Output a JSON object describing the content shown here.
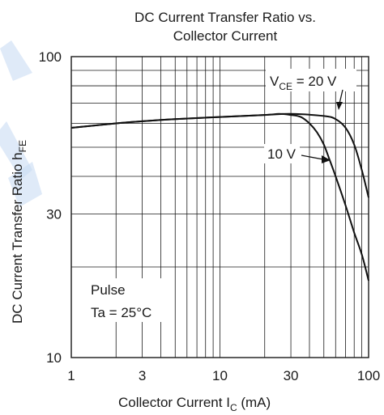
{
  "chart_data": {
    "type": "line",
    "title": [
      "DC Current Transfer Ratio vs.",
      "Collector Current"
    ],
    "xlabel": {
      "main": "Collector Current  I",
      "sub": "C",
      "unit": "  (mA)"
    },
    "ylabel": {
      "main": "DC Current Transfer Ratio  h",
      "sub": "FE"
    },
    "xscale": "log",
    "yscale": "log",
    "xlim": [
      1,
      100
    ],
    "ylim": [
      10,
      100
    ],
    "grid": true,
    "xticks": [
      {
        "value": 1,
        "label": "1"
      },
      {
        "value": 3,
        "label": "3"
      },
      {
        "value": 10,
        "label": "10"
      },
      {
        "value": 30,
        "label": "30"
      },
      {
        "value": 100,
        "label": "100"
      }
    ],
    "yticks": [
      {
        "value": 10,
        "label": "10"
      },
      {
        "value": 30,
        "label": "30"
      },
      {
        "value": 100,
        "label": "100"
      }
    ],
    "series": [
      {
        "label_main": "V",
        "label_sub": "CE",
        "label_rest": " = 20 V",
        "x": [
          1,
          2,
          3,
          5,
          10,
          20,
          30,
          50,
          60,
          70,
          80,
          90,
          100
        ],
        "y": [
          58,
          60,
          61,
          62,
          63,
          64,
          64.5,
          63.5,
          62,
          58,
          51,
          42,
          34
        ]
      },
      {
        "label_main": "",
        "label_sub": "",
        "label_rest": "10 V",
        "x": [
          1,
          2,
          3,
          5,
          10,
          20,
          25,
          30,
          35,
          40,
          45,
          50,
          55,
          60,
          70,
          80,
          90,
          100
        ],
        "y": [
          58,
          60,
          61,
          62,
          63,
          64,
          64.5,
          64,
          63,
          60,
          56,
          51,
          45,
          40,
          32,
          26,
          22,
          18
        ]
      }
    ],
    "annotations": [
      "Pulse",
      "Ta = 25°C"
    ]
  }
}
